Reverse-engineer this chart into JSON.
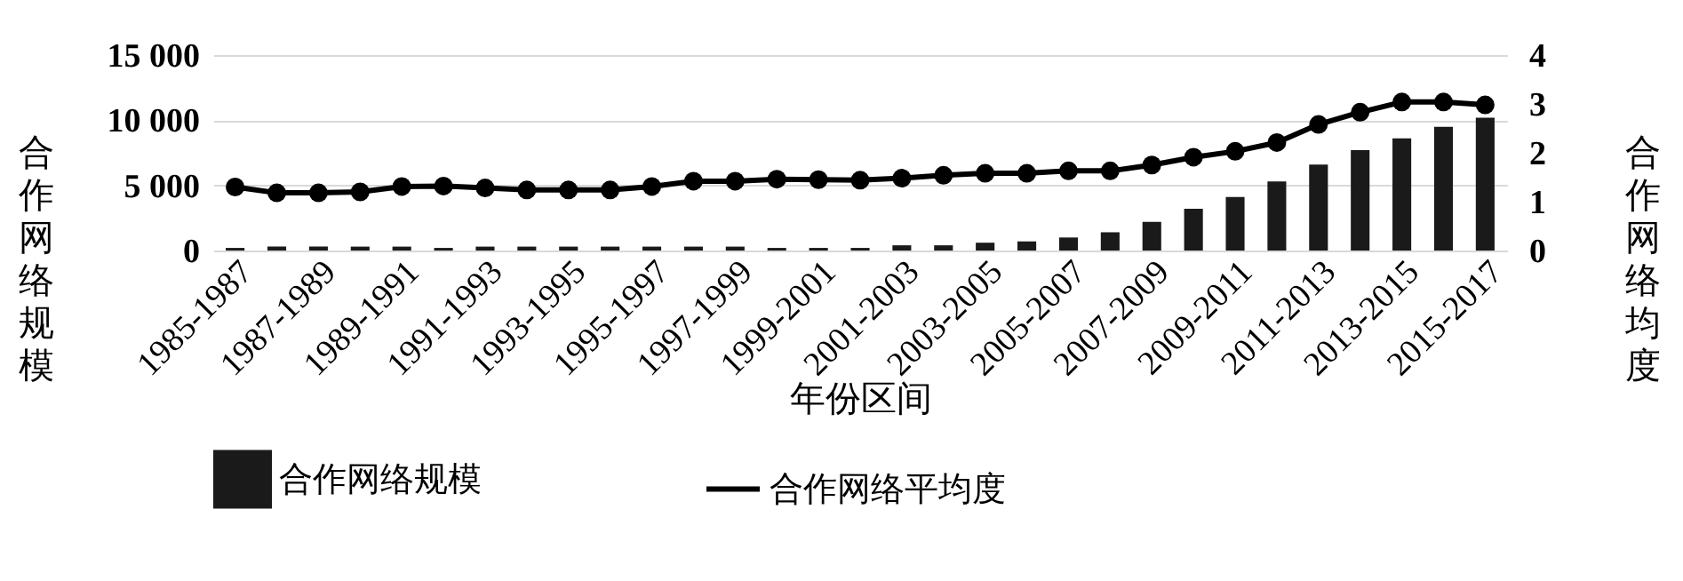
{
  "chart_data": {
    "type": "bar",
    "xlabel": "年份区间",
    "ylabel": "合作网络规模",
    "y2label": "合作网络均度",
    "categories": [
      "1985-1987",
      null,
      "1987-1989",
      null,
      "1989-1991",
      null,
      "1991-1993",
      null,
      "1993-1995",
      null,
      "1995-1997",
      null,
      "1997-1999",
      null,
      "1999-2001",
      null,
      "2001-2003",
      null,
      "2003-2005",
      null,
      "2005-2007",
      null,
      "2007-2009",
      null,
      "2009-2011",
      null,
      "2011-2013",
      null,
      "2013-2015",
      null,
      "2015-2017"
    ],
    "series": [
      {
        "name": "合作网络规模",
        "color": "#1a1a1a",
        "values": [
          200,
          300,
          300,
          300,
          300,
          200,
          300,
          300,
          300,
          300,
          300,
          300,
          300,
          200,
          200,
          200,
          400,
          400,
          600,
          700,
          1000,
          1400,
          2200,
          3200,
          4100,
          5300,
          6600,
          7700,
          8600,
          9500,
          10200
        ]
      },
      {
        "name": "合作网络平均度",
        "type": "line",
        "axis": "y2",
        "color": "#000000",
        "marker": "circle",
        "values": [
          1.3,
          1.18,
          1.18,
          1.2,
          1.31,
          1.32,
          1.28,
          1.24,
          1.24,
          1.24,
          1.31,
          1.42,
          1.42,
          1.46,
          1.45,
          1.44,
          1.48,
          1.54,
          1.58,
          1.58,
          1.63,
          1.63,
          1.75,
          1.91,
          2.03,
          2.21,
          2.58,
          2.83,
          3.04,
          3.04,
          2.98
        ]
      }
    ],
    "ylim": [
      0,
      15000
    ],
    "yticks": [
      0,
      {
        "value": 5000,
        "label": "5 000"
      },
      {
        "value": 10000,
        "label": "10 000"
      },
      {
        "value": 15000,
        "label": "15 000"
      }
    ],
    "y2lim": [
      0,
      4
    ],
    "y2ticks": [
      0,
      1,
      2,
      3,
      4
    ],
    "grid": "y",
    "legend": "bottom"
  }
}
